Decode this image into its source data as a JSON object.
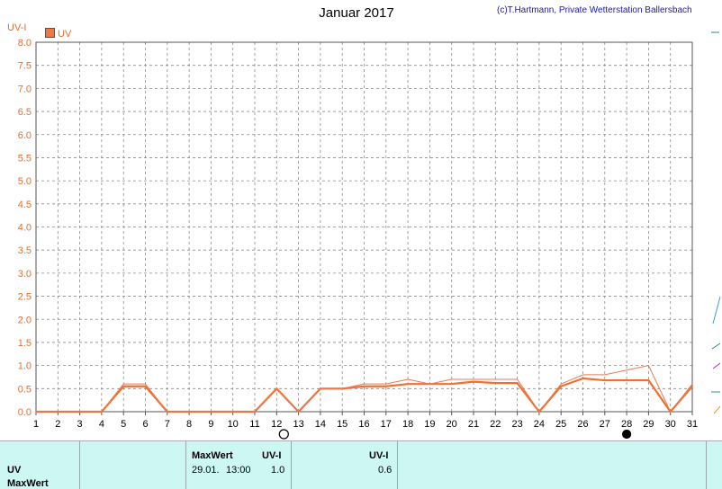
{
  "header": {
    "title": "Januar 2017",
    "credit": "(c)T.Hartmann, Private Wetterstation Ballersbach"
  },
  "colors": {
    "uv_main": "#f07030",
    "uv_max": "#f07850",
    "grid": "#8a8a8a",
    "axis_text": "#e07030"
  },
  "chart_data": {
    "type": "line",
    "ylabel": "UV-I",
    "ylim": [
      0,
      8
    ],
    "y_ticks": [
      "0.0",
      "0.5",
      "1.0",
      "1.5",
      "2.0",
      "2.5",
      "3.0",
      "3.5",
      "4.0",
      "4.5",
      "5.0",
      "5.5",
      "6.0",
      "6.5",
      "7.0",
      "7.5",
      "8.0"
    ],
    "x": [
      1,
      2,
      3,
      4,
      5,
      6,
      7,
      8,
      9,
      10,
      11,
      12,
      13,
      14,
      15,
      16,
      17,
      18,
      19,
      20,
      21,
      22,
      23,
      24,
      25,
      26,
      27,
      28,
      29,
      30,
      31
    ],
    "x_ticks": [
      "1",
      "2",
      "3",
      "4",
      "5",
      "6",
      "7",
      "8",
      "9",
      "10",
      "11",
      "12",
      "13",
      "14",
      "15",
      "16",
      "17",
      "18",
      "19",
      "20",
      "21",
      "22",
      "23",
      "24",
      "25",
      "26",
      "27",
      "28",
      "29",
      "30",
      "31"
    ],
    "legend": [
      "UV"
    ],
    "series": [
      {
        "name": "UV",
        "values": [
          0,
          0,
          0,
          0,
          0.55,
          0.55,
          0,
          0,
          0,
          0,
          0,
          0.5,
          0,
          0.5,
          0.5,
          0.55,
          0.55,
          0.6,
          0.6,
          0.6,
          0.65,
          0.62,
          0.62,
          0,
          0.55,
          0.72,
          0.68,
          0.68,
          0.68,
          0,
          0.55
        ]
      },
      {
        "name": "",
        "values": [
          0,
          0,
          0,
          0,
          0.6,
          0.6,
          0,
          0,
          0,
          0,
          0,
          0.5,
          0,
          0.5,
          0.5,
          0.6,
          0.6,
          0.7,
          0.6,
          0.7,
          0.7,
          0.7,
          0.7,
          0,
          0.6,
          0.8,
          0.8,
          0.9,
          1.0,
          0,
          0.6
        ]
      }
    ],
    "moon_phases": [
      {
        "day": 12,
        "phase": "full-moon"
      },
      {
        "day": 28,
        "phase": "new-moon"
      }
    ]
  },
  "table": {
    "row_label": "UV",
    "row2_label": "MaxWert",
    "col_max_header": "MaxWert",
    "col_max_date": "29.01.",
    "col_max_time": "13:00",
    "col_uv_header": "UV-I",
    "col_uv_max": "1.0",
    "col_mean_header": "UV-I",
    "col_mean_value": "0.6"
  }
}
